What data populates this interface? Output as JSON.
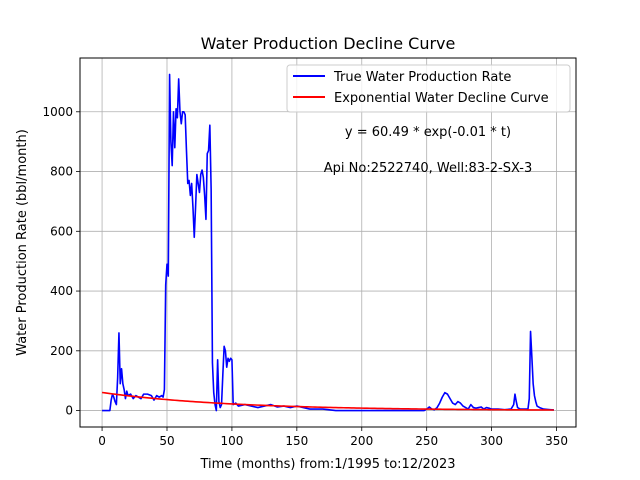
{
  "chart_data": {
    "type": "line",
    "title": "Water Production Decline Curve",
    "xlabel": "Time (months) from:1/1995 to:12/2023",
    "ylabel": "Water Production Rate (bbl/month)",
    "xlim": [
      -17,
      365
    ],
    "ylim": [
      -55,
      1180
    ],
    "xticks": [
      0,
      50,
      100,
      150,
      200,
      250,
      300,
      350
    ],
    "yticks": [
      0,
      200,
      400,
      600,
      800,
      1000
    ],
    "grid": true,
    "legend_position": "top-right",
    "annotations": [
      "y = 60.49 * exp(-0.01 * t)",
      "Api No:2522740, Well:83-2-SX-3"
    ],
    "series": [
      {
        "name": "True Water Production Rate",
        "color": "#0000ff",
        "points": [
          [
            0,
            0
          ],
          [
            6,
            0
          ],
          [
            7,
            35
          ],
          [
            8,
            55
          ],
          [
            9,
            45
          ],
          [
            10,
            30
          ],
          [
            11,
            20
          ],
          [
            12,
            110
          ],
          [
            13,
            260
          ],
          [
            14,
            90
          ],
          [
            15,
            140
          ],
          [
            16,
            90
          ],
          [
            17,
            70
          ],
          [
            18,
            40
          ],
          [
            19,
            65
          ],
          [
            20,
            50
          ],
          [
            22,
            55
          ],
          [
            24,
            40
          ],
          [
            26,
            50
          ],
          [
            28,
            45
          ],
          [
            30,
            40
          ],
          [
            32,
            55
          ],
          [
            35,
            55
          ],
          [
            38,
            50
          ],
          [
            40,
            35
          ],
          [
            42,
            50
          ],
          [
            44,
            45
          ],
          [
            46,
            50
          ],
          [
            47,
            45
          ],
          [
            48,
            70
          ],
          [
            49,
            420
          ],
          [
            50,
            490
          ],
          [
            51,
            450
          ],
          [
            52,
            1125
          ],
          [
            53,
            900
          ],
          [
            54,
            820
          ],
          [
            55,
            1000
          ],
          [
            56,
            880
          ],
          [
            57,
            1010
          ],
          [
            58,
            980
          ],
          [
            59,
            1110
          ],
          [
            60,
            1000
          ],
          [
            61,
            960
          ],
          [
            62,
            1000
          ],
          [
            63,
            1000
          ],
          [
            64,
            990
          ],
          [
            65,
            870
          ],
          [
            66,
            760
          ],
          [
            67,
            770
          ],
          [
            68,
            720
          ],
          [
            69,
            760
          ],
          [
            70,
            680
          ],
          [
            71,
            580
          ],
          [
            72,
            680
          ],
          [
            73,
            790
          ],
          [
            74,
            760
          ],
          [
            75,
            730
          ],
          [
            76,
            790
          ],
          [
            77,
            805
          ],
          [
            78,
            780
          ],
          [
            79,
            720
          ],
          [
            80,
            640
          ],
          [
            81,
            860
          ],
          [
            82,
            870
          ],
          [
            83,
            955
          ],
          [
            84,
            740
          ],
          [
            85,
            160
          ],
          [
            86,
            60
          ],
          [
            87,
            20
          ],
          [
            88,
            0
          ],
          [
            89,
            170
          ],
          [
            90,
            30
          ],
          [
            91,
            10
          ],
          [
            92,
            20
          ],
          [
            93,
            120
          ],
          [
            94,
            215
          ],
          [
            95,
            200
          ],
          [
            96,
            145
          ],
          [
            97,
            175
          ],
          [
            98,
            165
          ],
          [
            99,
            175
          ],
          [
            100,
            170
          ],
          [
            101,
            20
          ],
          [
            103,
            25
          ],
          [
            105,
            15
          ],
          [
            110,
            20
          ],
          [
            115,
            15
          ],
          [
            120,
            10
          ],
          [
            125,
            15
          ],
          [
            130,
            20
          ],
          [
            135,
            12
          ],
          [
            140,
            15
          ],
          [
            145,
            10
          ],
          [
            150,
            15
          ],
          [
            155,
            10
          ],
          [
            160,
            5
          ],
          [
            170,
            5
          ],
          [
            180,
            0
          ],
          [
            200,
            0
          ],
          [
            220,
            0
          ],
          [
            240,
            0
          ],
          [
            248,
            0
          ],
          [
            250,
            5
          ],
          [
            252,
            12
          ],
          [
            254,
            5
          ],
          [
            256,
            3
          ],
          [
            258,
            10
          ],
          [
            260,
            25
          ],
          [
            262,
            45
          ],
          [
            264,
            60
          ],
          [
            266,
            55
          ],
          [
            268,
            40
          ],
          [
            270,
            25
          ],
          [
            272,
            20
          ],
          [
            274,
            30
          ],
          [
            276,
            25
          ],
          [
            278,
            15
          ],
          [
            280,
            10
          ],
          [
            282,
            5
          ],
          [
            284,
            20
          ],
          [
            286,
            10
          ],
          [
            288,
            8
          ],
          [
            290,
            10
          ],
          [
            292,
            12
          ],
          [
            294,
            5
          ],
          [
            296,
            10
          ],
          [
            298,
            8
          ],
          [
            300,
            5
          ],
          [
            305,
            5
          ],
          [
            310,
            3
          ],
          [
            315,
            5
          ],
          [
            317,
            20
          ],
          [
            318,
            55
          ],
          [
            319,
            30
          ],
          [
            320,
            10
          ],
          [
            322,
            5
          ],
          [
            325,
            5
          ],
          [
            328,
            5
          ],
          [
            329,
            40
          ],
          [
            330,
            265
          ],
          [
            331,
            180
          ],
          [
            332,
            90
          ],
          [
            333,
            50
          ],
          [
            334,
            30
          ],
          [
            335,
            15
          ],
          [
            337,
            10
          ],
          [
            340,
            5
          ],
          [
            345,
            3
          ],
          [
            348,
            2
          ]
        ]
      },
      {
        "name": "Exponential Water Decline Curve",
        "color": "#ff0000",
        "equation": {
          "a": 60.49,
          "b": 0.01
        },
        "x_range": [
          0,
          348
        ]
      }
    ]
  }
}
